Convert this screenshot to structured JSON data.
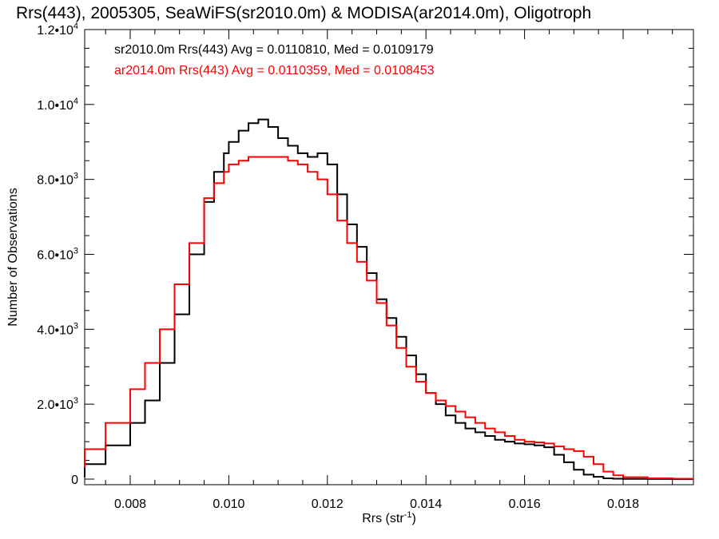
{
  "chart_data": {
    "type": "line",
    "title": "Rrs(443), 2005305, SeaWiFS(sr2010.0m) & MODISA(ar2014.0m), Oligotroph",
    "xlabel_main": "Rrs (str",
    "xlabel_sup": "-1",
    "xlabel_end": ")",
    "ylabel": "Number of Observations",
    "xlim": [
      0.0065,
      0.0197
    ],
    "ylim": [
      0,
      12000
    ],
    "x_ticks": [
      {
        "value": 0.008,
        "label": "0.008"
      },
      {
        "value": 0.01,
        "label": "0.010"
      },
      {
        "value": 0.012,
        "label": "0.012"
      },
      {
        "value": 0.014,
        "label": "0.014"
      },
      {
        "value": 0.016,
        "label": "0.016"
      },
      {
        "value": 0.018,
        "label": "0.018"
      }
    ],
    "y_ticks": [
      {
        "value": 0,
        "mant": "0",
        "exp": ""
      },
      {
        "value": 2000,
        "mant": "2.0•10",
        "exp": "3"
      },
      {
        "value": 4000,
        "mant": "4.0•10",
        "exp": "3"
      },
      {
        "value": 6000,
        "mant": "6.0•10",
        "exp": "3"
      },
      {
        "value": 8000,
        "mant": "8.0•10",
        "exp": "3"
      },
      {
        "value": 10000,
        "mant": "1.0•10",
        "exp": "4"
      },
      {
        "value": 12000,
        "mant": "1.2•10",
        "exp": "4"
      }
    ],
    "legend": [
      {
        "text": "sr2010.0m Rrs(443) Avg = 0.0110810, Med = 0.0109179",
        "color": "#000000"
      },
      {
        "text": "ar2014.0m Rrs(443) Avg = 0.0110359, Med = 0.0108453",
        "color": "#ff0000"
      }
    ],
    "series": [
      {
        "color": "#000000",
        "x": [
          0.0065,
          0.007,
          0.0075,
          0.008,
          0.0083,
          0.0086,
          0.0089,
          0.0092,
          0.0095,
          0.0097,
          0.0099,
          0.01,
          0.0102,
          0.0104,
          0.0106,
          0.0108,
          0.011,
          0.0112,
          0.0114,
          0.0116,
          0.0118,
          0.012,
          0.0122,
          0.0124,
          0.0126,
          0.0128,
          0.013,
          0.0132,
          0.0134,
          0.0136,
          0.0138,
          0.014,
          0.0142,
          0.0144,
          0.0146,
          0.0148,
          0.015,
          0.0152,
          0.0154,
          0.0156,
          0.0158,
          0.016,
          0.0162,
          0.0164,
          0.0166,
          0.0168,
          0.017,
          0.0172,
          0.0174,
          0.0176,
          0.0178,
          0.018,
          0.0185,
          0.019,
          0.0197
        ],
        "y": [
          50,
          400,
          900,
          1500,
          2100,
          3100,
          4400,
          6000,
          7400,
          8200,
          8700,
          9000,
          9300,
          9500,
          9600,
          9400,
          9100,
          8900,
          8700,
          8600,
          8700,
          8400,
          7600,
          6800,
          6200,
          5500,
          4800,
          4300,
          3800,
          3300,
          2800,
          2300,
          2000,
          1700,
          1500,
          1350,
          1250,
          1150,
          1050,
          1000,
          950,
          930,
          900,
          850,
          650,
          450,
          250,
          120,
          60,
          20,
          10,
          5,
          2,
          0,
          0
        ]
      },
      {
        "color": "#ff0000",
        "x": [
          0.0065,
          0.007,
          0.0075,
          0.008,
          0.0083,
          0.0086,
          0.0089,
          0.0092,
          0.0095,
          0.0097,
          0.0099,
          0.01,
          0.0102,
          0.0104,
          0.0106,
          0.0108,
          0.011,
          0.0112,
          0.0114,
          0.0116,
          0.0118,
          0.012,
          0.0122,
          0.0124,
          0.0126,
          0.0128,
          0.013,
          0.0132,
          0.0134,
          0.0136,
          0.0138,
          0.014,
          0.0142,
          0.0144,
          0.0146,
          0.0148,
          0.015,
          0.0152,
          0.0154,
          0.0156,
          0.0158,
          0.016,
          0.0162,
          0.0164,
          0.0166,
          0.0168,
          0.017,
          0.0172,
          0.0174,
          0.0176,
          0.0178,
          0.018,
          0.0185,
          0.019,
          0.0197
        ],
        "y": [
          300,
          800,
          1500,
          2400,
          3100,
          4000,
          5200,
          6300,
          7500,
          7900,
          8200,
          8400,
          8500,
          8600,
          8600,
          8600,
          8600,
          8500,
          8400,
          8200,
          8000,
          7600,
          6900,
          6300,
          5800,
          5300,
          4700,
          4100,
          3500,
          3000,
          2600,
          2300,
          2100,
          1950,
          1800,
          1650,
          1500,
          1350,
          1250,
          1150,
          1050,
          1000,
          980,
          950,
          870,
          800,
          750,
          600,
          400,
          200,
          100,
          50,
          20,
          10,
          10
        ]
      }
    ]
  }
}
